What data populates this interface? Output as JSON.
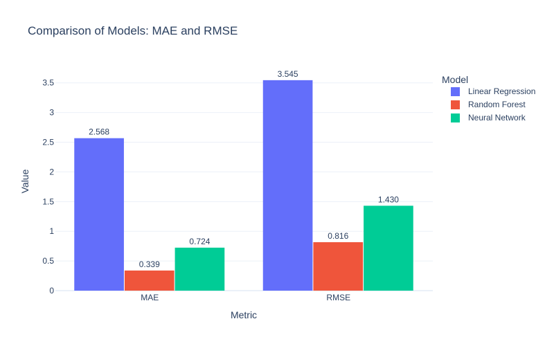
{
  "chart_data": {
    "type": "bar",
    "title": "Comparison of Models: MAE and RMSE",
    "xlabel": "Metric",
    "ylabel": "Value",
    "categories": [
      "MAE",
      "RMSE"
    ],
    "series": [
      {
        "name": "Linear Regression",
        "color": "#636efa",
        "values": [
          2.568,
          3.545
        ],
        "labels": [
          "2.568",
          "3.545"
        ]
      },
      {
        "name": "Random Forest",
        "color": "#ef553b",
        "values": [
          0.339,
          0.816
        ],
        "labels": [
          "0.339",
          "0.816"
        ]
      },
      {
        "name": "Neural Network",
        "color": "#00cc96",
        "values": [
          0.724,
          1.43
        ],
        "labels": [
          "0.724",
          "1.430"
        ]
      }
    ],
    "ylim": [
      0,
      3.73
    ],
    "yticks": [
      {
        "value": 0,
        "label": "0"
      },
      {
        "value": 0.5,
        "label": "0.5"
      },
      {
        "value": 1,
        "label": "1"
      },
      {
        "value": 1.5,
        "label": "1.5"
      },
      {
        "value": 2,
        "label": "2"
      },
      {
        "value": 2.5,
        "label": "2.5"
      },
      {
        "value": 3,
        "label": "3"
      },
      {
        "value": 3.5,
        "label": "3.5"
      }
    ],
    "grid": true,
    "legend": {
      "title": "Model",
      "position": "top-right"
    }
  }
}
